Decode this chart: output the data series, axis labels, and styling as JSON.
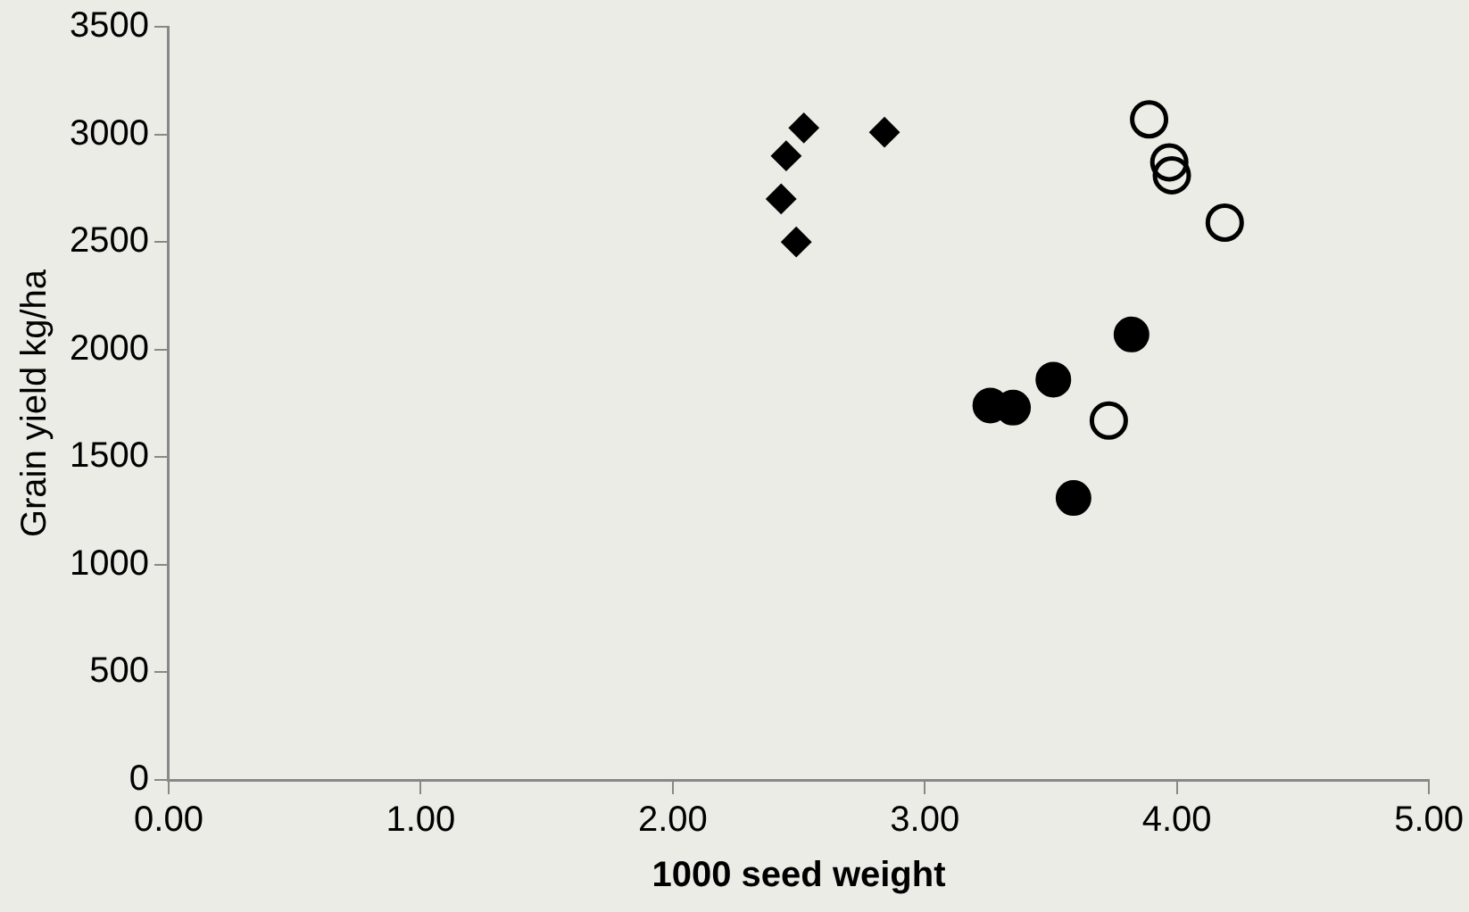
{
  "chart_data": {
    "type": "scatter",
    "xlabel": "1000 seed weight",
    "ylabel": "Grain yield kg/ha",
    "xlim": [
      0,
      5
    ],
    "xticks": [
      {
        "value": 0,
        "label": "0.00"
      },
      {
        "value": 1,
        "label": "1.00"
      },
      {
        "value": 2,
        "label": "2.00"
      },
      {
        "value": 3,
        "label": "3.00"
      },
      {
        "value": 4,
        "label": "4.00"
      },
      {
        "value": 5,
        "label": "5.00"
      }
    ],
    "ylim": [
      0,
      3500
    ],
    "yticks": [
      0,
      500,
      1000,
      1500,
      2000,
      2500,
      3000,
      3500
    ],
    "grid": false,
    "legend": false,
    "series": [
      {
        "color": "#000000",
        "marker": "diamond",
        "x": [
          2.52,
          2.45,
          2.43,
          2.49,
          2.84
        ],
        "values": [
          3030,
          2900,
          2700,
          2500,
          3010
        ]
      },
      {
        "color": "#000000",
        "marker": "circle",
        "x": [
          3.26,
          3.35,
          3.51,
          3.82,
          3.59
        ],
        "values": [
          1740,
          1730,
          1860,
          2070,
          1310
        ]
      },
      {
        "color": "#000000",
        "marker": "circle",
        "x": [
          3.89,
          3.97,
          3.98,
          4.19,
          3.73
        ],
        "values": [
          3070,
          2870,
          2810,
          2590,
          1670
        ]
      }
    ]
  }
}
